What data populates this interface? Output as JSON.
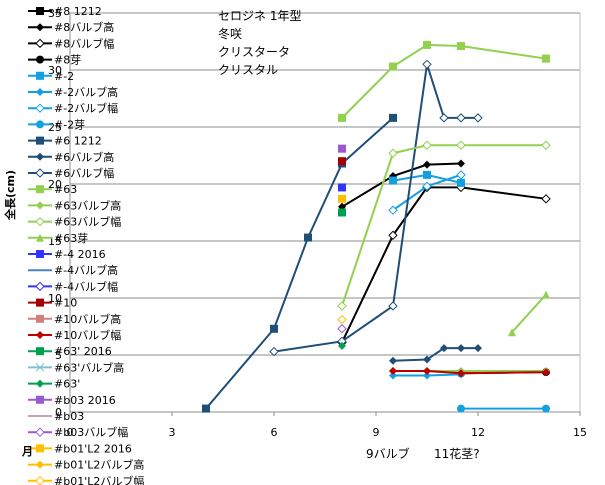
{
  "chart_data": {
    "type": "line",
    "title_lines": [
      "セロジネ 1年型",
      "冬咲",
      "クリスタータ",
      "クリスタル"
    ],
    "ylabel": "全長(cm)",
    "xlabel": "月",
    "xlim": [
      0,
      15
    ],
    "ylim": [
      0,
      35
    ],
    "xticks": [
      0,
      3,
      6,
      9,
      12,
      15
    ],
    "yticks": [
      0,
      5,
      10,
      15,
      20,
      25,
      30,
      35
    ],
    "grid_y": true,
    "annotations": [
      {
        "text": "9バルブ",
        "x": 9,
        "color": "#1f6fb0"
      },
      {
        "text": "11花茎?",
        "x": 11,
        "color": "#b020b0"
      }
    ],
    "series": [
      {
        "name": "#8 1212",
        "color": "#000000",
        "marker": "square",
        "points": []
      },
      {
        "name": "#8バルブ高",
        "color": "#000000",
        "marker": "diamond",
        "points": [
          [
            8,
            18
          ],
          [
            9.5,
            20.7
          ],
          [
            10.5,
            21.7
          ],
          [
            11.5,
            21.8
          ]
        ]
      },
      {
        "name": "#8バルブ幅",
        "color": "#000000",
        "marker": "open-diamond",
        "points": [
          [
            8,
            6.1
          ],
          [
            9.5,
            15.5
          ],
          [
            10.5,
            19.7
          ],
          [
            11.5,
            19.7
          ],
          [
            14,
            18.7
          ]
        ]
      },
      {
        "name": "#8芽",
        "color": "#000000",
        "marker": "circle",
        "points": [
          [
            11.5,
            3.4
          ],
          [
            14,
            3.5
          ]
        ]
      },
      {
        "name": "#-2",
        "color": "#14a0e0",
        "marker": "square",
        "points": [
          [
            9.5,
            20.3
          ],
          [
            10.5,
            20.8
          ],
          [
            11.5,
            20.1
          ]
        ]
      },
      {
        "name": "#-2バルブ高",
        "color": "#14a0e0",
        "marker": "diamond",
        "points": [
          [
            9.5,
            3.2
          ],
          [
            10.5,
            3.2
          ],
          [
            11.5,
            3.3
          ]
        ]
      },
      {
        "name": "#-2バルブ幅",
        "color": "#14a0e0",
        "marker": "open-diamond",
        "points": [
          [
            9.5,
            17.7
          ],
          [
            10.5,
            19.8
          ],
          [
            11.5,
            20.8
          ]
        ]
      },
      {
        "name": "#-2芽",
        "color": "#14a0e0",
        "marker": "circle",
        "points": [
          [
            11.5,
            0.3
          ],
          [
            14,
            0.3
          ]
        ]
      },
      {
        "name": "#6 1212",
        "color": "#1f4e79",
        "marker": "square",
        "points": [
          [
            4,
            0.3
          ],
          [
            6,
            7.3
          ],
          [
            7,
            15.3
          ],
          [
            8,
            21.8
          ],
          [
            9.5,
            25.8
          ]
        ]
      },
      {
        "name": "#6バルブ高",
        "color": "#1f4e79",
        "marker": "diamond",
        "points": [
          [
            9.5,
            4.5
          ],
          [
            10.5,
            4.6
          ],
          [
            11,
            5.6
          ],
          [
            11.5,
            5.6
          ],
          [
            12,
            5.6
          ]
        ]
      },
      {
        "name": "#6バルブ幅",
        "color": "#1f4e79",
        "marker": "open-diamond",
        "points": [
          [
            6,
            5.3
          ],
          [
            8,
            6.2
          ],
          [
            9.5,
            9.3
          ],
          [
            10.5,
            30.5
          ],
          [
            11,
            25.8
          ],
          [
            11.5,
            25.8
          ],
          [
            12,
            25.8
          ]
        ]
      },
      {
        "name": "#63",
        "color": "#92d050",
        "marker": "square",
        "points": [
          [
            8,
            25.8
          ],
          [
            9.5,
            30.3
          ],
          [
            10.5,
            32.2
          ],
          [
            11.5,
            32.1
          ],
          [
            14,
            31.0
          ]
        ]
      },
      {
        "name": "#63バルブ高",
        "color": "#92d050",
        "marker": "diamond",
        "points": [
          [
            9.5,
            3.6
          ],
          [
            10.5,
            3.6
          ],
          [
            11.5,
            3.6
          ],
          [
            14,
            3.6
          ]
        ]
      },
      {
        "name": "#63バルブ幅",
        "color": "#92d050",
        "marker": "open-diamond",
        "points": [
          [
            8,
            9.3
          ],
          [
            9.5,
            22.7
          ],
          [
            10.5,
            23.4
          ],
          [
            11.5,
            23.4
          ],
          [
            14,
            23.4
          ]
        ]
      },
      {
        "name": "#63芽",
        "color": "#92d050",
        "marker": "triangle",
        "points": [
          [
            13,
            7.0
          ],
          [
            14,
            10.3
          ]
        ]
      },
      {
        "name": "#-4 2016",
        "color": "#3333ff",
        "marker": "square",
        "points": [
          [
            8,
            19.7
          ]
        ]
      },
      {
        "name": "#-4バルブ高",
        "color": "#4f81bd",
        "marker": "none",
        "points": []
      },
      {
        "name": "#-4バルブ幅",
        "color": "#3333ff",
        "marker": "open-diamond",
        "points": []
      },
      {
        "name": "#10",
        "color": "#a50000",
        "marker": "square",
        "points": [
          [
            8,
            22.0
          ]
        ]
      },
      {
        "name": "#10バルブ高",
        "color": "#d08080",
        "marker": "square",
        "points": []
      },
      {
        "name": "#10バルブ幅",
        "color": "#c00000",
        "marker": "diamond",
        "points": [
          [
            9.5,
            3.6
          ],
          [
            10.5,
            3.6
          ],
          [
            11.5,
            3.4
          ],
          [
            14,
            3.5
          ]
        ]
      },
      {
        "name": "#63' 2016",
        "color": "#00a050",
        "marker": "square",
        "points": [
          [
            8,
            17.5
          ]
        ]
      },
      {
        "name": "#63'バルブ高",
        "color": "#80c0d0",
        "marker": "star",
        "points": []
      },
      {
        "name": "#63'",
        "color": "#00a050",
        "marker": "diamond",
        "points": [
          [
            8,
            5.8
          ]
        ]
      },
      {
        "name": "#b03 2016",
        "color": "#9b59d0",
        "marker": "square",
        "points": [
          [
            8,
            23.1
          ]
        ]
      },
      {
        "name": "#b03",
        "color": "#c8a0b8",
        "marker": "none",
        "points": []
      },
      {
        "name": "#b03バルブ幅",
        "color": "#9b59d0",
        "marker": "open-diamond",
        "points": [
          [
            8,
            7.3
          ]
        ]
      },
      {
        "name": "#b01'L2 2016",
        "color": "#ffc000",
        "marker": "square",
        "points": [
          [
            8,
            18.7
          ]
        ]
      },
      {
        "name": "#b01'L2バルブ高",
        "color": "#ffc000",
        "marker": "diamond",
        "points": []
      },
      {
        "name": "#b01'L2バルブ幅",
        "color": "#ffc000",
        "marker": "open-diamond",
        "points": [
          [
            8,
            8.1
          ]
        ]
      }
    ]
  }
}
